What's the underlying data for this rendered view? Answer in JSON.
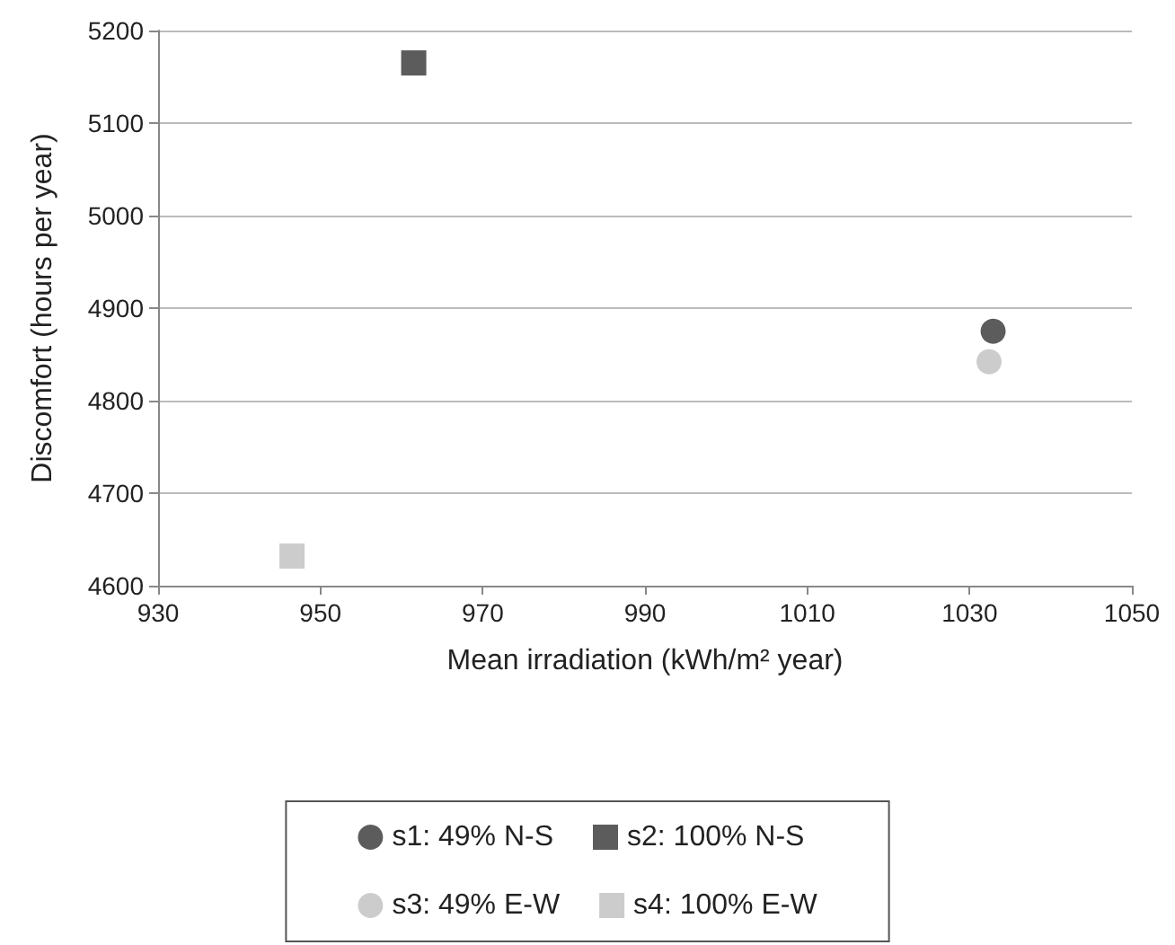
{
  "chart_data": {
    "type": "scatter",
    "xlabel": "Mean irradiation (kWh/m² year)",
    "ylabel": "Discomfort (hours per year)",
    "xlim": [
      930,
      1050
    ],
    "xticks": [
      930,
      950,
      970,
      990,
      1010,
      1030,
      1050
    ],
    "ylim": [
      4600,
      5200
    ],
    "yticks": [
      4600,
      4700,
      4800,
      4900,
      5000,
      5100,
      5200
    ],
    "grid": "y",
    "legend": "bottom",
    "series": [
      {
        "name": "s1: 49% N-S",
        "color": "#333333",
        "marker": "circle",
        "x": [
          1032.9
        ],
        "values": [
          4875
        ]
      },
      {
        "name": "s2: 100% N-S",
        "color": "#333333",
        "marker": "square",
        "x": [
          961.5
        ],
        "values": [
          5165
        ]
      },
      {
        "name": "s3: 49% E-W",
        "color": "#bfbfbf",
        "marker": "circle",
        "x": [
          1032.4
        ],
        "values": [
          4842
        ]
      },
      {
        "name": "s4: 100% E-W",
        "color": "#bfbfbf",
        "marker": "square",
        "x": [
          946.5
        ],
        "values": [
          4632
        ]
      }
    ]
  }
}
